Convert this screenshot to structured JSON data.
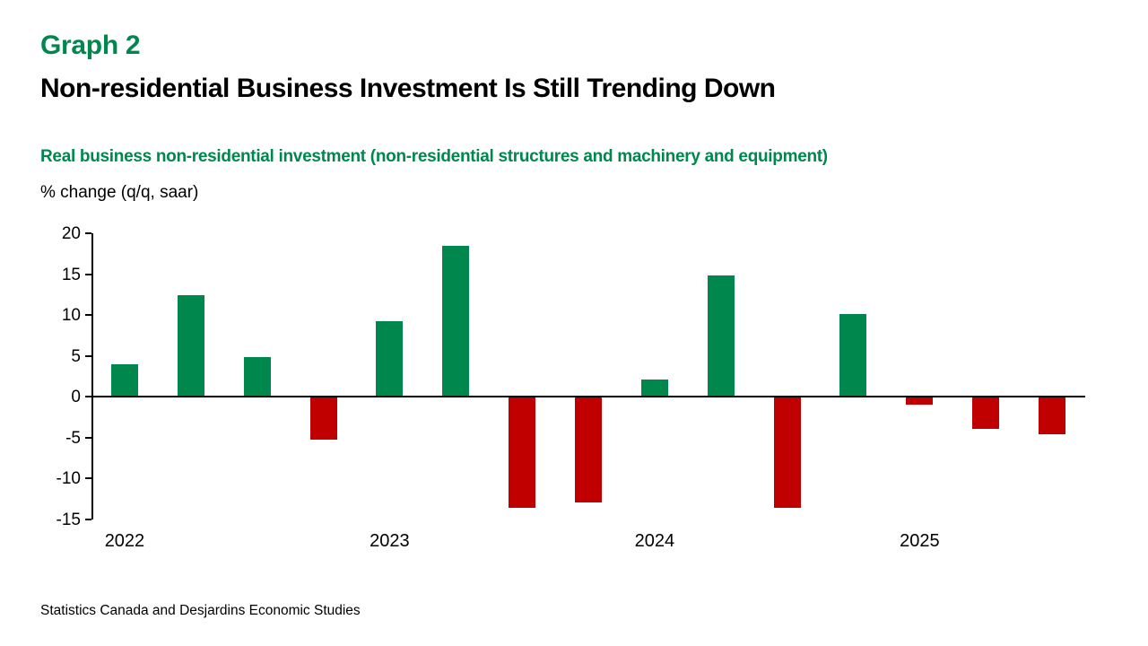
{
  "header": {
    "graph_label": "Graph 2",
    "title": "Non-residential Business Investment Is Still Trending Down"
  },
  "chart_data": {
    "type": "bar",
    "subtitle": "Real business non-residential investment (non-residential structures and machinery and equipment)",
    "unit_label": "% change (q/q, saar)",
    "categories": [
      "2022 Q1",
      "2022 Q2",
      "2022 Q3",
      "2022 Q4",
      "2023 Q1",
      "2023 Q2",
      "2023 Q3",
      "2023 Q4",
      "2024 Q1",
      "2024 Q2",
      "2024 Q3",
      "2024 Q4",
      "2025 Q1",
      "2025 Q2",
      "2025 Q3"
    ],
    "values": [
      4.0,
      12.4,
      4.9,
      -5.2,
      9.3,
      18.5,
      -13.6,
      -12.9,
      2.1,
      14.8,
      -13.6,
      10.1,
      -1.0,
      -3.9,
      -4.6
    ],
    "ylim": [
      -15,
      20
    ],
    "yticks": [
      20,
      15,
      10,
      5,
      0,
      -5,
      -10,
      -15
    ],
    "x_axis_labels": [
      {
        "label": "2022",
        "slot": 0
      },
      {
        "label": "2023",
        "slot": 4
      },
      {
        "label": "2024",
        "slot": 8
      },
      {
        "label": "2025",
        "slot": 12
      }
    ],
    "grid": false,
    "legend": false,
    "colors": {
      "positive": "#00874E",
      "negative": "#C00000",
      "axis": "#000000",
      "heading_green": "#00874E"
    }
  },
  "footer": {
    "source": "Statistics Canada and Desjardins Economic Studies"
  }
}
